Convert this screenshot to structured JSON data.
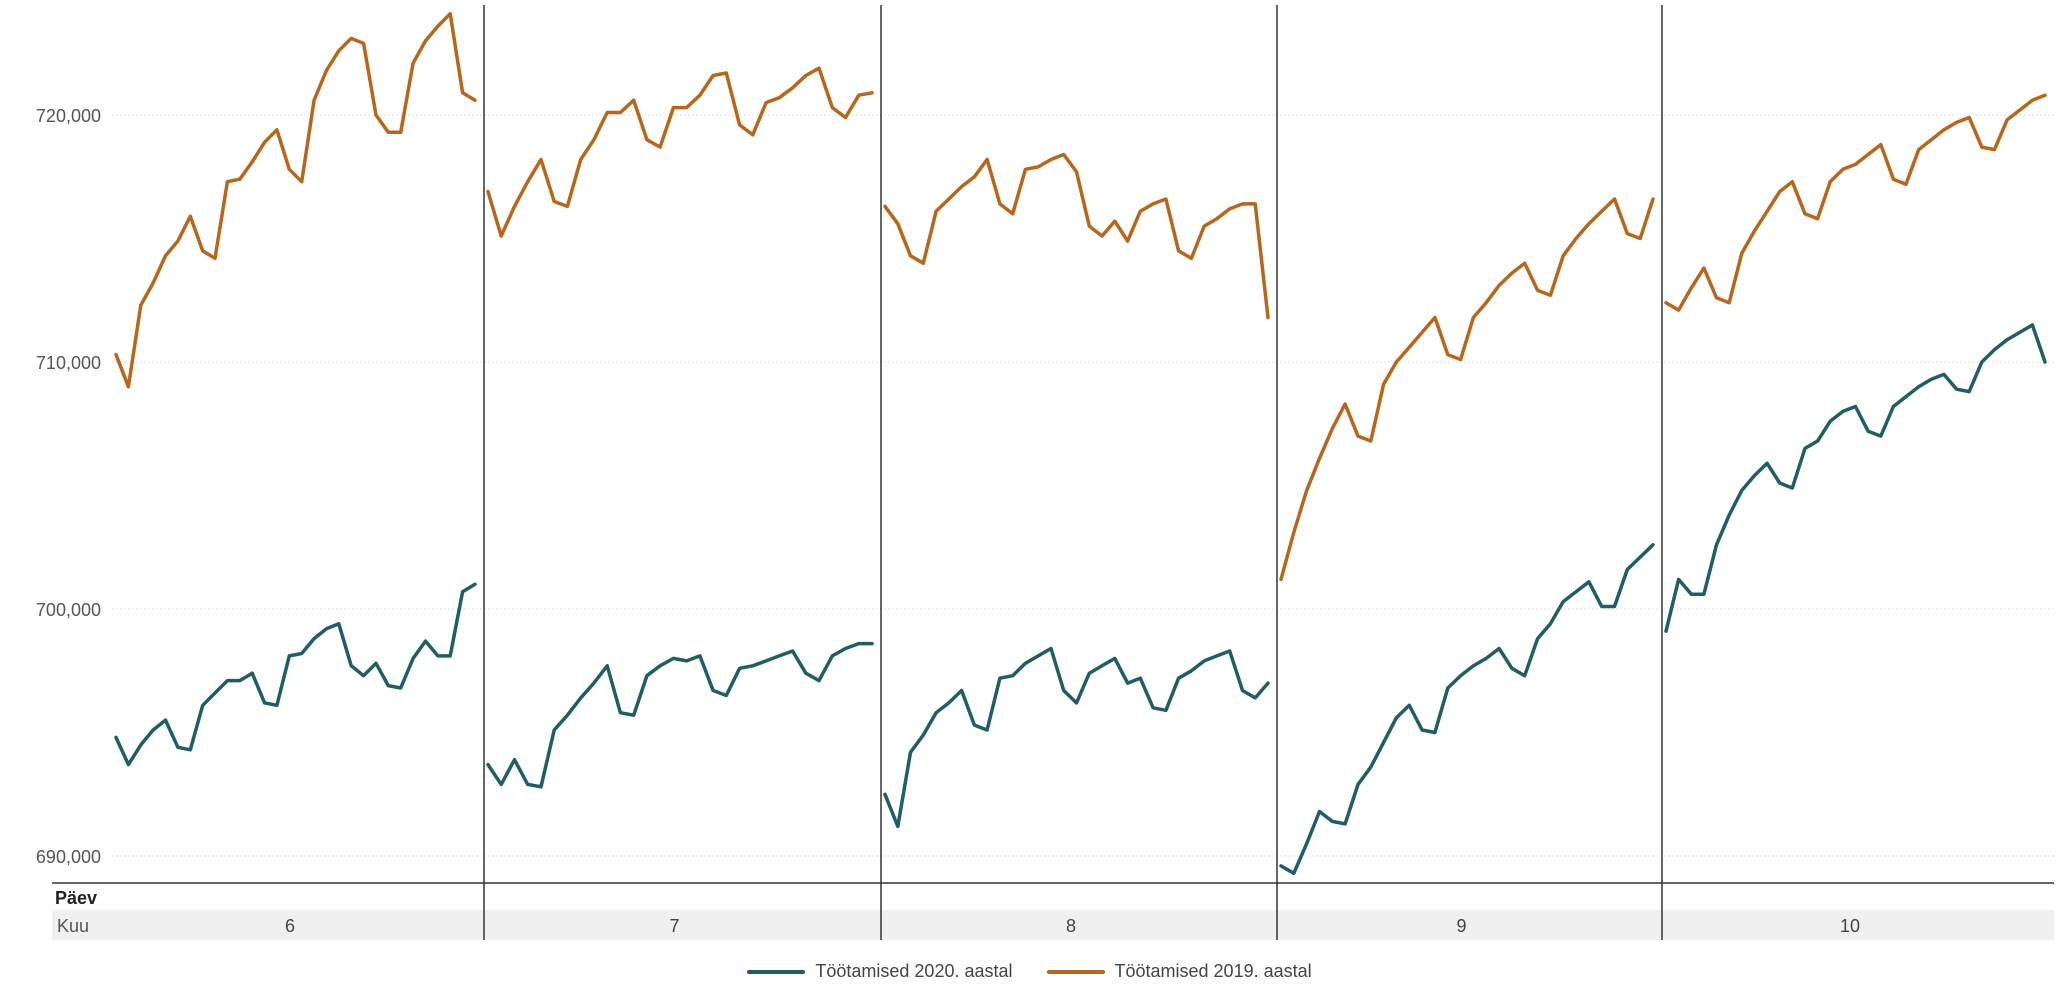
{
  "chart_data": {
    "type": "line",
    "title": "",
    "xlabel": "Päev",
    "facet_label": "Kuu",
    "ylabel": "",
    "ylim": [
      689000,
      724000
    ],
    "y_ticks": [
      "690,000",
      "700,000",
      "710,000",
      "720,000"
    ],
    "grid": true,
    "legend_position": "bottom",
    "colors": {
      "Töötamised 2020. aastal": "#1f5e63",
      "Töötamised 2019. aastal": "#b8661a"
    },
    "panels": [
      {
        "month": "6",
        "series": [
          {
            "name": "Töötamised 2020. aastal",
            "values": [
              694800,
              693700,
              694500,
              695100,
              695500,
              694400,
              694300,
              696100,
              696600,
              697100,
              697100,
              697400,
              696200,
              696100,
              698100,
              698200,
              698800,
              699200,
              699400,
              697700,
              697300,
              697800,
              696900,
              696800,
              698000,
              698700,
              698100,
              698100,
              700700,
              701000
            ]
          },
          {
            "name": "Töötamised 2019. aastal",
            "values": [
              710300,
              709000,
              712300,
              713200,
              714300,
              714900,
              715900,
              714500,
              714200,
              717300,
              717400,
              718100,
              718900,
              719400,
              717800,
              717300,
              720600,
              721800,
              722600,
              723100,
              722900,
              720000,
              719300,
              719300,
              722100,
              723000,
              723600,
              724100,
              720900,
              720600
            ]
          }
        ]
      },
      {
        "month": "7",
        "series": [
          {
            "name": "Töötamised 2020. aastal",
            "values": [
              693700,
              692900,
              693900,
              692900,
              692800,
              695100,
              695700,
              696400,
              697000,
              697700,
              695800,
              695700,
              697300,
              697700,
              698000,
              697900,
              698100,
              696700,
              696500,
              697600,
              697700,
              697900,
              698100,
              698300,
              697400,
              697100,
              698100,
              698400,
              698600,
              698600
            ]
          },
          {
            "name": "Töötamised 2019. aastal",
            "values": [
              716900,
              715100,
              716300,
              717300,
              718200,
              716500,
              716300,
              718200,
              719000,
              720100,
              720100,
              720600,
              719000,
              718700,
              720300,
              720300,
              720800,
              721600,
              721700,
              719600,
              719200,
              720500,
              720700,
              721100,
              721600,
              721900,
              720300,
              719900,
              720800,
              720900
            ]
          }
        ]
      },
      {
        "month": "8",
        "series": [
          {
            "name": "Töötamised 2020. aastal",
            "values": [
              692500,
              691200,
              694200,
              694900,
              695800,
              696200,
              696700,
              695300,
              695100,
              697200,
              697300,
              697800,
              698100,
              698400,
              696700,
              696200,
              697400,
              697700,
              698000,
              697000,
              697200,
              696000,
              695900,
              697200,
              697500,
              697900,
              698100,
              698300,
              696700,
              696400,
              697000
            ]
          },
          {
            "name": "Töötamised 2019. aastal",
            "values": [
              716300,
              715600,
              714300,
              714000,
              716100,
              716600,
              717100,
              717500,
              718200,
              716400,
              716000,
              717800,
              717900,
              718200,
              718400,
              717700,
              715500,
              715100,
              715700,
              714900,
              716100,
              716400,
              716600,
              714500,
              714200,
              715500,
              715800,
              716200,
              716400,
              716400,
              711800
            ]
          }
        ]
      },
      {
        "month": "9",
        "series": [
          {
            "name": "Töötamised 2020. aastal",
            "values": [
              689600,
              689300,
              690500,
              691800,
              691400,
              691300,
              692900,
              693600,
              694600,
              695600,
              696100,
              695100,
              695000,
              696800,
              697300,
              697700,
              698000,
              698400,
              697600,
              697300,
              698800,
              699400,
              700300,
              700700,
              701100,
              700100,
              700100,
              701600,
              702100,
              702600
            ]
          },
          {
            "name": "Töötamised 2019. aastal",
            "values": [
              701200,
              703100,
              704800,
              706100,
              707300,
              708300,
              707000,
              706800,
              709100,
              710000,
              710600,
              711200,
              711800,
              710300,
              710100,
              711800,
              712400,
              713100,
              713600,
              714000,
              712900,
              712700,
              714300,
              715000,
              715600,
              716100,
              716600,
              715200,
              715000,
              716600
            ]
          }
        ]
      },
      {
        "month": "10",
        "series": [
          {
            "name": "Töötamised 2020. aastal",
            "values": [
              699100,
              701200,
              700600,
              700600,
              702600,
              703800,
              704800,
              705400,
              705900,
              705100,
              704900,
              706500,
              706800,
              707600,
              708000,
              708200,
              707200,
              707000,
              708200,
              708600,
              709000,
              709300,
              709500,
              708900,
              708800,
              710000,
              710500,
              710900,
              711200,
              711500,
              710000
            ]
          },
          {
            "name": "Töötamised 2019. aastal",
            "values": [
              712400,
              712100,
              713000,
              713800,
              712600,
              712400,
              714400,
              715300,
              716100,
              716900,
              717300,
              716000,
              715800,
              717300,
              717800,
              718000,
              718400,
              718800,
              717400,
              717200,
              718600,
              719000,
              719400,
              719700,
              719900,
              718700,
              718600,
              719800,
              720200,
              720600,
              720800
            ]
          }
        ]
      }
    ]
  },
  "legend": [
    {
      "label": "Töötamised 2020. aastal",
      "color": "#1f5e63"
    },
    {
      "label": "Töötamised 2019. aastal",
      "color": "#b8661a"
    }
  ]
}
